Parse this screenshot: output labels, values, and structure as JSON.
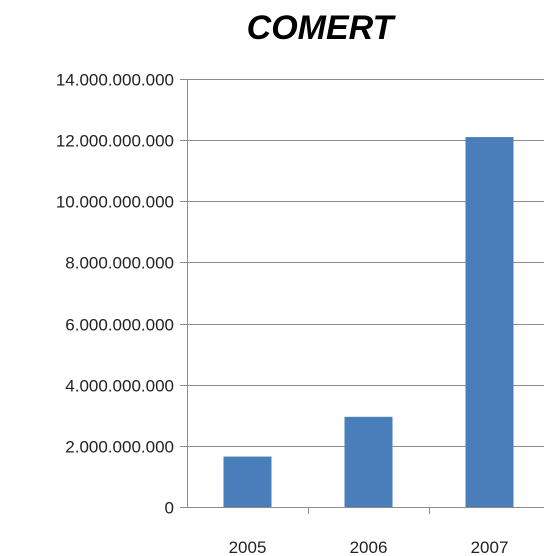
{
  "chart_data": {
    "type": "bar",
    "title": "COMERT",
    "categories": [
      "2005",
      "2006",
      "2007"
    ],
    "values": [
      1650000000,
      2950000000,
      12100000000
    ],
    "ylim": [
      0,
      14000000000
    ],
    "yticks": [
      0,
      2000000000,
      4000000000,
      6000000000,
      8000000000,
      10000000000,
      12000000000,
      14000000000
    ],
    "ytick_labels": [
      "0",
      "2.000.000.000",
      "4.000.000.000",
      "6.000.000.000",
      "8.000.000.000",
      "10.000.000.000",
      "12.000.000.000",
      "14.000.000.000"
    ],
    "grid": true,
    "legend": false
  },
  "colors": {
    "bar": "#4a7ebb",
    "gridline": "#8c8c8c",
    "axis": "#8c8c8c",
    "background": "#ffffff"
  }
}
